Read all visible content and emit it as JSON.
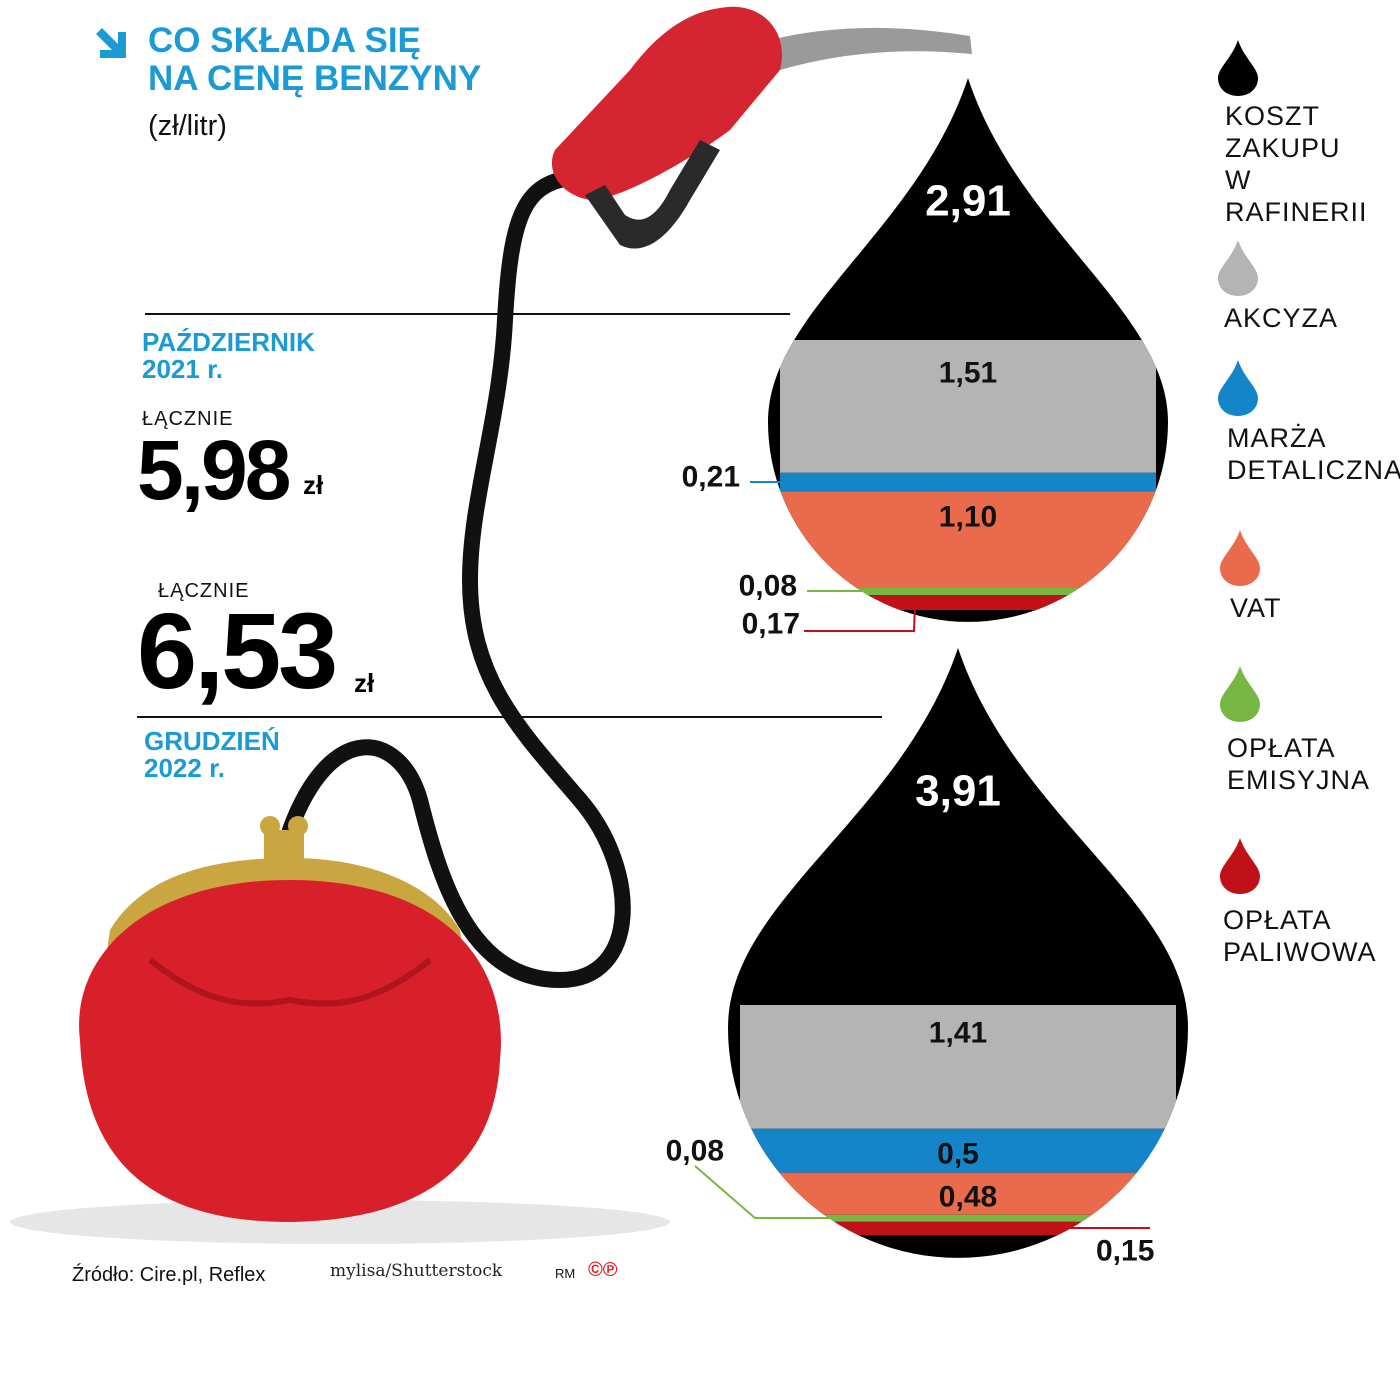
{
  "title": "CO SKŁADA SIĘ\nNA CENĘ BENZYNY",
  "unit": "(zł/litr)",
  "periods": [
    {
      "name": "PAŹDZIERNIK\n2021 r.",
      "total_label": "ŁĄCZNIE",
      "total": "5,98",
      "currency": "zł"
    },
    {
      "name": "GRUDZIEŃ\n2022 r.",
      "total_label": "ŁĄCZNIE",
      "total": "6,53",
      "currency": "zł"
    }
  ],
  "legend": [
    {
      "label": "KOSZT\nZAKUPU\nW RAFINERII",
      "color": "#000000"
    },
    {
      "label": "AKCYZA",
      "color": "#b4b4b4"
    },
    {
      "label": "MARŻA\nDETALICZNA",
      "color": "#1385c8"
    },
    {
      "label": "VAT",
      "color": "#ea6a4c"
    },
    {
      "label": "OPŁATA\nEMISYJNA",
      "color": "#76b843"
    },
    {
      "label": "OPŁATA\nPALIWOWA",
      "color": "#c01018"
    }
  ],
  "chart_data": {
    "type": "bar",
    "unit": "(zł/litr)",
    "categories": [
      "PAŹDZIERNIK 2021 r.",
      "GRUDZIEŃ 2022 r."
    ],
    "series": [
      {
        "name": "KOSZT ZAKUPU W RAFINERII",
        "values": [
          2.91,
          3.91
        ],
        "labels": [
          "2,91",
          "3,91"
        ],
        "color": "#000000"
      },
      {
        "name": "AKCYZA",
        "values": [
          1.51,
          1.41
        ],
        "labels": [
          "1,51",
          "1,41"
        ],
        "color": "#b4b4b4"
      },
      {
        "name": "MARŻA DETALICZNA",
        "values": [
          0.21,
          0.5
        ],
        "labels": [
          "0,21",
          "0,5"
        ],
        "color": "#1385c8"
      },
      {
        "name": "VAT",
        "values": [
          1.1,
          0.48
        ],
        "labels": [
          "1,10",
          "0,48"
        ],
        "color": "#ea6a4c"
      },
      {
        "name": "OPŁATA EMISYJNA",
        "values": [
          0.08,
          0.08
        ],
        "labels": [
          "0,08",
          "0,08"
        ],
        "color": "#76b843"
      },
      {
        "name": "OPŁATA PALIWOWA",
        "values": [
          0.17,
          0.15
        ],
        "labels": [
          "0,17",
          "0,15"
        ],
        "color": "#c01018"
      }
    ],
    "totals": [
      5.98,
      6.53
    ]
  },
  "footer": {
    "source": "Źródło: Cire.pl, Reflex",
    "photo_credit": "mylisa/Shutterstock",
    "rm": "RM",
    "cp": "©℗"
  }
}
